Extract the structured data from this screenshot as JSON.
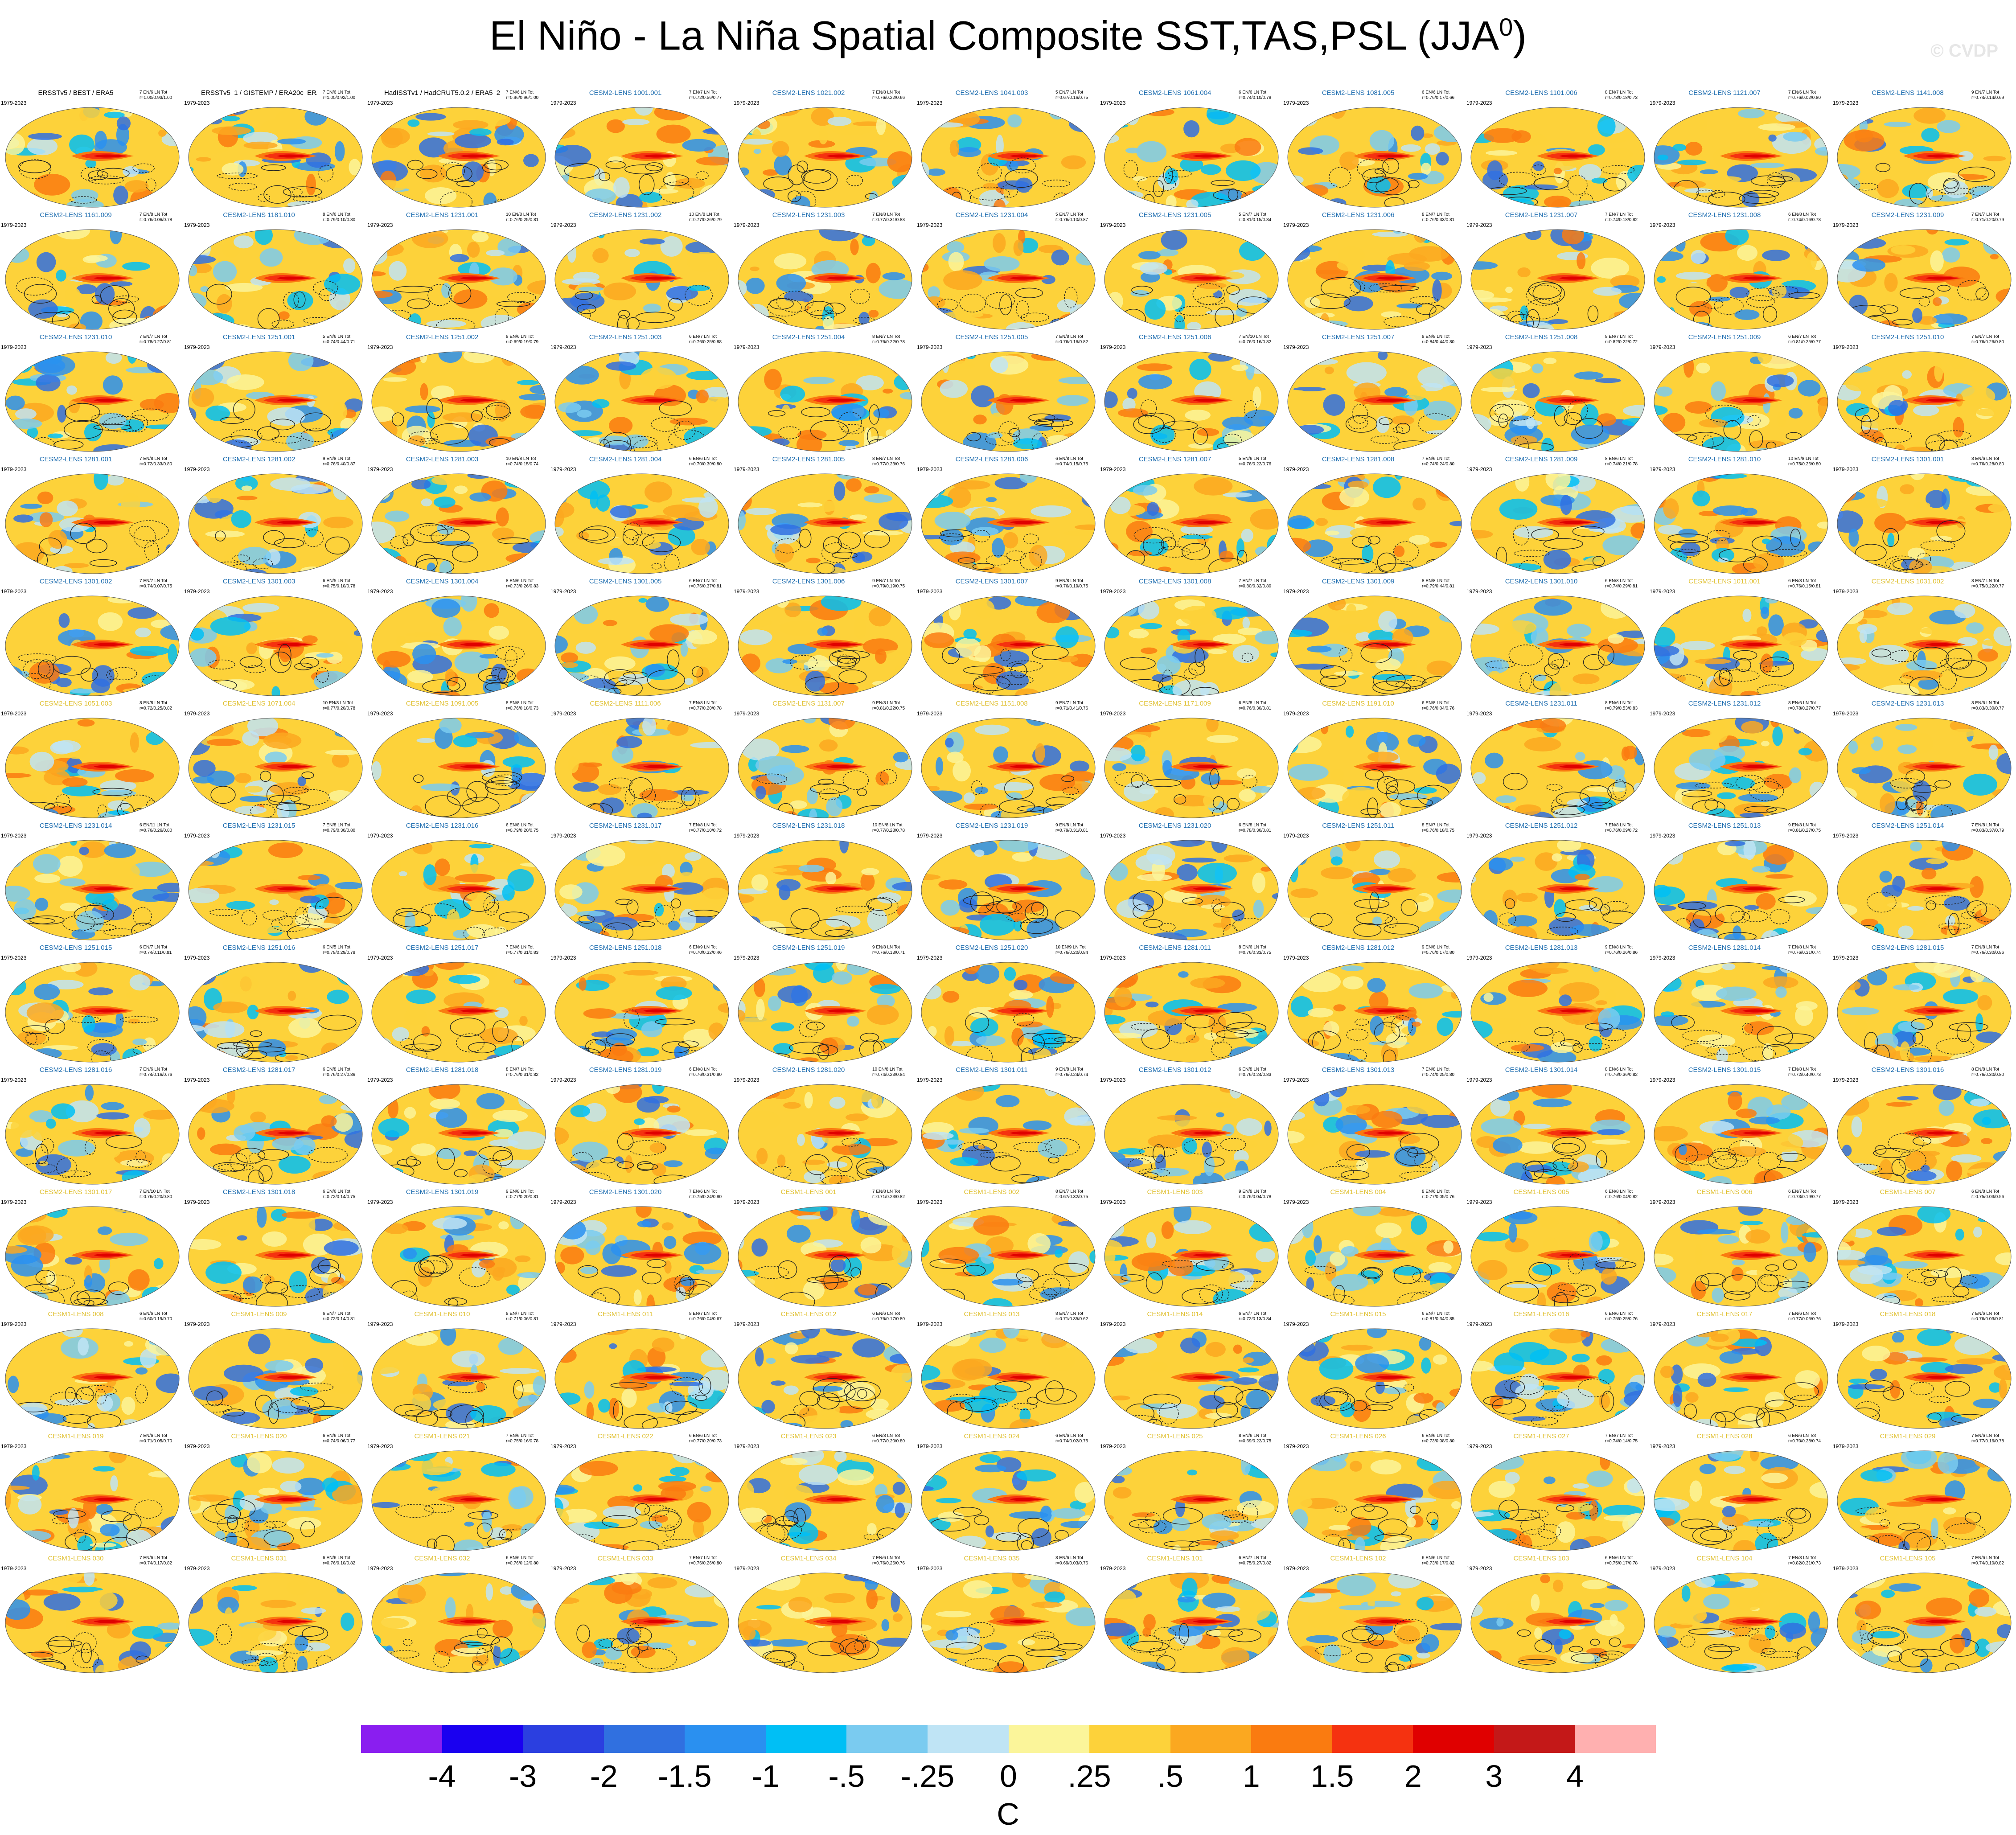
{
  "title": {
    "text": "El Niño - La Niña Spatial Composite SST,TAS,PSL (JJA",
    "sup": "0",
    "close": ")"
  },
  "watermark": "© CVDP",
  "period": "1979-2023",
  "colors": {
    "obs_title": "#000000",
    "cesm2_title": "#1f6eb0",
    "cesm1_title": "#e0c030"
  },
  "colorbar": {
    "colors": [
      "#8a1ef0",
      "#1a00f0",
      "#2b3fe0",
      "#3070e0",
      "#2a90f0",
      "#00bff5",
      "#7acbf0",
      "#bfe4f5",
      "#fbf59a",
      "#fdd23a",
      "#fba820",
      "#fa7b10",
      "#f53210",
      "#e00000",
      "#c41818",
      "#ffb0b0"
    ],
    "ticks": [
      "-4",
      "-3",
      "-2",
      "-1.5",
      "-1",
      "-.5",
      "-.25",
      "0",
      ".25",
      ".5",
      "1",
      "1.5",
      "2",
      "3",
      "4"
    ],
    "unit": "C"
  },
  "panels": [
    {
      "t": "ERSSTv5 / BEST / ERA5",
      "c": "obs",
      "s": "7 EN/6 LN Tot r=1.00/0.93/1.00"
    },
    {
      "t": "ERSSTv5_1 / GISTEMP / ERA20c_ERA5_comb",
      "c": "obs",
      "s": "7 EN/6 LN Tot r=1.00/0.92/1.00"
    },
    {
      "t": "HadISSTv1 / HadCRUT5.0.2 / ERA5_2",
      "c": "obs",
      "s": "7 EN/6 LN Tot r=0.96/0.96/1.00"
    },
    {
      "t": "CESM2-LENS 1001.001",
      "c": "c2",
      "s": "7 EN/7 LN Tot r=0.72/0.56/0.77"
    },
    {
      "t": "CESM2-LENS 1021.002",
      "c": "c2",
      "s": "7 EN/8 LN Tot r=0.76/0.22/0.66"
    },
    {
      "t": "CESM2-LENS 1041.003",
      "c": "c2",
      "s": "5 EN/7 LN Tot r=0.67/0.16/0.75"
    },
    {
      "t": "CESM2-LENS 1061.004",
      "c": "c2",
      "s": "6 EN/6 LN Tot r=0.74/0.10/0.78"
    },
    {
      "t": "CESM2-LENS 1081.005",
      "c": "c2",
      "s": "6 EN/6 LN Tot r=0.76/0.17/0.66"
    },
    {
      "t": "CESM2-LENS 1101.006",
      "c": "c2",
      "s": "8 EN/7 LN Tot r=0.78/0.18/0.73"
    },
    {
      "t": "CESM2-LENS 1121.007",
      "c": "c2",
      "s": "7 EN/6 LN Tot r=0.76/0.02/0.80"
    },
    {
      "t": "CESM2-LENS 1141.008",
      "c": "c2",
      "s": "9 EN/7 LN Tot r=0.74/0.14/0.69"
    },
    {
      "t": "CESM2-LENS 1161.009",
      "c": "c2",
      "s": "7 EN/8 LN Tot r=0.76/0.06/0.78"
    },
    {
      "t": "CESM2-LENS 1181.010",
      "c": "c2",
      "s": "8 EN/6 LN Tot r=0.79/0.10/0.80"
    },
    {
      "t": "CESM2-LENS 1231.001",
      "c": "c2",
      "s": "10 EN/8 LN Tot r=0.76/0.25/0.81"
    },
    {
      "t": "CESM2-LENS 1231.002",
      "c": "c2",
      "s": "10 EN/8 LN Tot r=0.77/0.26/0.79"
    },
    {
      "t": "CESM2-LENS 1231.003",
      "c": "c2",
      "s": "7 EN/8 LN Tot r=0.77/0.31/0.83"
    },
    {
      "t": "CESM2-LENS 1231.004",
      "c": "c2",
      "s": "5 EN/7 LN Tot r=0.76/0.10/0.87"
    },
    {
      "t": "CESM2-LENS 1231.005",
      "c": "c2",
      "s": "5 EN/7 LN Tot r=0.81/0.15/0.84"
    },
    {
      "t": "CESM2-LENS 1231.006",
      "c": "c2",
      "s": "8 EN/7 LN Tot r=0.76/0.33/0.81"
    },
    {
      "t": "CESM2-LENS 1231.007",
      "c": "c2",
      "s": "7 EN/7 LN Tot r=0.74/0.18/0.82"
    },
    {
      "t": "CESM2-LENS 1231.008",
      "c": "c2",
      "s": "6 EN/8 LN Tot r=0.74/0.16/0.78"
    },
    {
      "t": "CESM2-LENS 1231.009",
      "c": "c2",
      "s": "7 EN/7 LN Tot r=0.71/0.20/0.79"
    },
    {
      "t": "CESM2-LENS 1231.010",
      "c": "c2",
      "s": "7 EN/7 LN Tot r=0.78/0.27/0.81"
    },
    {
      "t": "CESM2-LENS 1251.001",
      "c": "c2",
      "s": "5 EN/6 LN Tot r=0.74/0.44/0.71"
    },
    {
      "t": "CESM2-LENS 1251.002",
      "c": "c2",
      "s": "8 EN/6 LN Tot r=0.69/0.19/0.79"
    },
    {
      "t": "CESM2-LENS 1251.003",
      "c": "c2",
      "s": "6 EN/7 LN Tot r=0.76/0.25/0.88"
    },
    {
      "t": "CESM2-LENS 1251.004",
      "c": "c2",
      "s": "8 EN/7 LN Tot r=0.76/0.22/0.78"
    },
    {
      "t": "CESM2-LENS 1251.005",
      "c": "c2",
      "s": "7 EN/8 LN Tot r=0.76/0.16/0.82"
    },
    {
      "t": "CESM2-LENS 1251.006",
      "c": "c2",
      "s": "7 EN/10 LN Tot r=0.76/0.16/0.82"
    },
    {
      "t": "CESM2-LENS 1251.007",
      "c": "c2",
      "s": "8 EN/8 LN Tot r=0.84/0.44/0.80"
    },
    {
      "t": "CESM2-LENS 1251.008",
      "c": "c2",
      "s": "8 EN/7 LN Tot r=0.82/0.22/0.72"
    },
    {
      "t": "CESM2-LENS 1251.009",
      "c": "c2",
      "s": "6 EN/7 LN Tot r=0.81/0.25/0.77"
    },
    {
      "t": "CESM2-LENS 1251.010",
      "c": "c2",
      "s": "7 EN/7 LN Tot r=0.76/0.26/0.80"
    },
    {
      "t": "CESM2-LENS 1281.001",
      "c": "c2",
      "s": "7 EN/8 LN Tot r=0.72/0.33/0.80"
    },
    {
      "t": "CESM2-LENS 1281.002",
      "c": "c2",
      "s": "9 EN/8 LN Tot r=0.76/0.40/0.87"
    },
    {
      "t": "CESM2-LENS 1281.003",
      "c": "c2",
      "s": "10 EN/8 LN Tot r=0.74/0.15/0.74"
    },
    {
      "t": "CESM2-LENS 1281.004",
      "c": "c2",
      "s": "6 EN/6 LN Tot r=0.70/0.30/0.80"
    },
    {
      "t": "CESM2-LENS 1281.005",
      "c": "c2",
      "s": "8 EN/7 LN Tot r=0.77/0.23/0.76"
    },
    {
      "t": "CESM2-LENS 1281.006",
      "c": "c2",
      "s": "6 EN/8 LN Tot r=0.74/0.15/0.75"
    },
    {
      "t": "CESM2-LENS 1281.007",
      "c": "c2",
      "s": "5 EN/6 LN Tot r=0.76/0.22/0.76"
    },
    {
      "t": "CESM2-LENS 1281.008",
      "c": "c2",
      "s": "7 EN/6 LN Tot r=0.74/0.24/0.80"
    },
    {
      "t": "CESM2-LENS 1281.009",
      "c": "c2",
      "s": "8 EN/6 LN Tot r=0.74/0.21/0.78"
    },
    {
      "t": "CESM2-LENS 1281.010",
      "c": "c2",
      "s": "10 EN/8 LN Tot r=0.75/0.26/0.80"
    },
    {
      "t": "CESM2-LENS 1301.001",
      "c": "c2",
      "s": "8 EN/6 LN Tot r=0.76/0.28/0.80"
    },
    {
      "t": "CESM2-LENS 1301.002",
      "c": "c2",
      "s": "7 EN/7 LN Tot r=0.74/0.07/0.75"
    },
    {
      "t": "CESM2-LENS 1301.003",
      "c": "c2",
      "s": "6 EN/5 LN Tot r=0.75/0.10/0.78"
    },
    {
      "t": "CESM2-LENS 1301.004",
      "c": "c2",
      "s": "8 EN/6 LN Tot r=0.73/0.26/0.83"
    },
    {
      "t": "CESM2-LENS 1301.005",
      "c": "c2",
      "s": "6 EN/7 LN Tot r=0.76/0.37/0.81"
    },
    {
      "t": "CESM2-LENS 1301.006",
      "c": "c2",
      "s": "9 EN/7 LN Tot r=0.79/0.19/0.75"
    },
    {
      "t": "CESM2-LENS 1301.007",
      "c": "c2",
      "s": "9 EN/8 LN Tot r=0.76/0.19/0.75"
    },
    {
      "t": "CESM2-LENS 1301.008",
      "c": "c2",
      "s": "7 EN/7 LN Tot r=0.80/0.32/0.80"
    },
    {
      "t": "CESM2-LENS 1301.009",
      "c": "c2",
      "s": "8 EN/8 LN Tot r=0.79/0.44/0.81"
    },
    {
      "t": "CESM2-LENS 1301.010",
      "c": "c2",
      "s": "6 EN/8 LN Tot r=0.74/0.29/0.81"
    },
    {
      "t": "CESM2-LENS 1011.001",
      "c": "c2y",
      "s": "6 EN/8 LN Tot r=0.76/0.15/0.81"
    },
    {
      "t": "CESM2-LENS 1031.002",
      "c": "c2y",
      "s": "8 EN/7 LN Tot r=0.75/0.22/0.77"
    },
    {
      "t": "CESM2-LENS 1051.003",
      "c": "c2y",
      "s": "8 EN/8 LN Tot r=0.72/0.25/0.82"
    },
    {
      "t": "CESM2-LENS 1071.004",
      "c": "c2y",
      "s": "10 EN/8 LN Tot r=0.77/0.20/0.78"
    },
    {
      "t": "CESM2-LENS 1091.005",
      "c": "c2y",
      "s": "8 EN/8 LN Tot r=0.76/0.18/0.73"
    },
    {
      "t": "CESM2-LENS 1111.006",
      "c": "c2y",
      "s": "7 EN/8 LN Tot r=0.77/0.20/0.78"
    },
    {
      "t": "CESM2-LENS 1131.007",
      "c": "c2y",
      "s": "9 EN/8 LN Tot r=0.81/0.22/0.75"
    },
    {
      "t": "CESM2-LENS 1151.008",
      "c": "c2y",
      "s": "9 EN/7 LN Tot r=0.71/0.41/0.76"
    },
    {
      "t": "CESM2-LENS 1171.009",
      "c": "c2y",
      "s": "6 EN/8 LN Tot r=0.76/0.30/0.81"
    },
    {
      "t": "CESM2-LENS 1191.010",
      "c": "c2y",
      "s": "6 EN/8 LN Tot r=0.76/0.04/0.76"
    },
    {
      "t": "CESM2-LENS 1231.011",
      "c": "c2",
      "s": "8 EN/6 LN Tot r=0.79/0.53/0.83"
    },
    {
      "t": "CESM2-LENS 1231.012",
      "c": "c2",
      "s": "8 EN/6 LN Tot r=0.78/0.27/0.77"
    },
    {
      "t": "CESM2-LENS 1231.013",
      "c": "c2",
      "s": "8 EN/6 LN Tot r=0.83/0.30/0.77"
    },
    {
      "t": "CESM2-LENS 1231.014",
      "c": "c2",
      "s": "6 EN/11 LN Tot r=0.76/0.26/0.80"
    },
    {
      "t": "CESM2-LENS 1231.015",
      "c": "c2",
      "s": "7 EN/8 LN Tot r=0.79/0.30/0.80"
    },
    {
      "t": "CESM2-LENS 1231.016",
      "c": "c2",
      "s": "6 EN/8 LN Tot r=0.79/0.20/0.75"
    },
    {
      "t": "CESM2-LENS 1231.017",
      "c": "c2",
      "s": "7 EN/8 LN Tot r=0.77/0.10/0.72"
    },
    {
      "t": "CESM2-LENS 1231.018",
      "c": "c2",
      "s": "10 EN/8 LN Tot r=0.77/0.28/0.78"
    },
    {
      "t": "CESM2-LENS 1231.019",
      "c": "c2",
      "s": "9 EN/8 LN Tot r=0.79/0.31/0.81"
    },
    {
      "t": "CESM2-LENS 1231.020",
      "c": "c2",
      "s": "6 EN/8 LN Tot r=0.78/0.30/0.81"
    },
    {
      "t": "CESM2-LENS 1251.011",
      "c": "c2",
      "s": "8 EN/7 LN Tot r=0.76/0.18/0.75"
    },
    {
      "t": "CESM2-LENS 1251.012",
      "c": "c2",
      "s": "7 EN/8 LN Tot r=0.76/0.09/0.72"
    },
    {
      "t": "CESM2-LENS 1251.013",
      "c": "c2",
      "s": "9 EN/8 LN Tot r=0.81/0.27/0.75"
    },
    {
      "t": "CESM2-LENS 1251.014",
      "c": "c2",
      "s": "7 EN/8 LN Tot r=0.83/0.37/0.79"
    },
    {
      "t": "CESM2-LENS 1251.015",
      "c": "c2",
      "s": "6 EN/7 LN Tot r=0.74/0.11/0.81"
    },
    {
      "t": "CESM2-LENS 1251.016",
      "c": "c2",
      "s": "6 EN/5 LN Tot r=0.78/0.29/0.78"
    },
    {
      "t": "CESM2-LENS 1251.017",
      "c": "c2",
      "s": "7 EN/6 LN Tot r=0.77/0.31/0.83"
    },
    {
      "t": "CESM2-LENS 1251.018",
      "c": "c2",
      "s": "6 EN/9 LN Tot r=0.70/0.32/0.46"
    },
    {
      "t": "CESM2-LENS 1251.019",
      "c": "c2",
      "s": "9 EN/8 LN Tot r=0.76/0.13/0.71"
    },
    {
      "t": "CESM2-LENS 1251.020",
      "c": "c2",
      "s": "10 EN/9 LN Tot r=0.76/0.20/0.84"
    },
    {
      "t": "CESM2-LENS 1281.011",
      "c": "c2",
      "s": "8 EN/6 LN Tot r=0.76/0.33/0.75"
    },
    {
      "t": "CESM2-LENS 1281.012",
      "c": "c2",
      "s": "9 EN/8 LN Tot r=0.76/0.17/0.80"
    },
    {
      "t": "CESM2-LENS 1281.013",
      "c": "c2",
      "s": "9 EN/8 LN Tot r=0.76/0.26/0.86"
    },
    {
      "t": "CESM2-LENS 1281.014",
      "c": "c2",
      "s": "7 EN/8 LN Tot r=0.76/0.31/0.74"
    },
    {
      "t": "CESM2-LENS 1281.015",
      "c": "c2",
      "s": "7 EN/8 LN Tot r=0.76/0.30/0.86"
    },
    {
      "t": "CESM2-LENS 1281.016",
      "c": "c2",
      "s": "7 EN/6 LN Tot r=0.74/0.16/0.76"
    },
    {
      "t": "CESM2-LENS 1281.017",
      "c": "c2",
      "s": "6 EN/8 LN Tot r=0.76/0.27/0.86"
    },
    {
      "t": "CESM2-LENS 1281.018",
      "c": "c2",
      "s": "8 EN/7 LN Tot r=0.76/0.31/0.82"
    },
    {
      "t": "CESM2-LENS 1281.019",
      "c": "c2",
      "s": "6 EN/8 LN Tot r=0.76/0.31/0.80"
    },
    {
      "t": "CESM2-LENS 1281.020",
      "c": "c2",
      "s": "10 EN/8 LN Tot r=0.74/0.23/0.84"
    },
    {
      "t": "CESM2-LENS 1301.011",
      "c": "c2",
      "s": "9 EN/8 LN Tot r=0.76/0.24/0.74"
    },
    {
      "t": "CESM2-LENS 1301.012",
      "c": "c2",
      "s": "6 EN/8 LN Tot r=0.76/0.24/0.83"
    },
    {
      "t": "CESM2-LENS 1301.013",
      "c": "c2",
      "s": "7 EN/8 LN Tot r=0.74/0.25/0.80"
    },
    {
      "t": "CESM2-LENS 1301.014",
      "c": "c2",
      "s": "8 EN/6 LN Tot r=0.76/0.36/0.82"
    },
    {
      "t": "CESM2-LENS 1301.015",
      "c": "c2",
      "s": "7 EN/8 LN Tot r=0.72/0.40/0.73"
    },
    {
      "t": "CESM2-LENS 1301.016",
      "c": "c2",
      "s": "8 EN/8 LN Tot r=0.76/0.30/0.80"
    },
    {
      "t": "CESM2-LENS 1301.017",
      "c": "c2y",
      "s": "7 EN/10 LN Tot r=0.76/0.20/0.80"
    },
    {
      "t": "CESM2-LENS 1301.018",
      "c": "c2",
      "s": "6 EN/6 LN Tot r=0.72/0.14/0.75"
    },
    {
      "t": "CESM2-LENS 1301.019",
      "c": "c2",
      "s": "9 EN/8 LN Tot r=0.77/0.20/0.81"
    },
    {
      "t": "CESM2-LENS 1301.020",
      "c": "c2",
      "s": "7 EN/6 LN Tot r=0.75/0.24/0.80"
    },
    {
      "t": "CESM1-LENS 001",
      "c": "c1",
      "s": "7 EN/8 LN Tot r=0.71/0.23/0.82"
    },
    {
      "t": "CESM1-LENS 002",
      "c": "c1",
      "s": "8 EN/7 LN Tot r=0.67/0.32/0.75"
    },
    {
      "t": "CESM1-LENS 003",
      "c": "c1",
      "s": "9 EN/8 LN Tot r=0.76/0.04/0.78"
    },
    {
      "t": "CESM1-LENS 004",
      "c": "c1",
      "s": "8 EN/6 LN Tot r=0.77/0.05/0.76"
    },
    {
      "t": "CESM1-LENS 005",
      "c": "c1",
      "s": "6 EN/8 LN Tot r=0.76/0.04/0.82"
    },
    {
      "t": "CESM1-LENS 006",
      "c": "c1",
      "s": "6 EN/7 LN Tot r=0.73/0.19/0.77"
    },
    {
      "t": "CESM1-LENS 007",
      "c": "c1",
      "s": "6 EN/8 LN Tot r=0.75/0.03/0.56"
    },
    {
      "t": "CESM1-LENS 008",
      "c": "c1",
      "s": "6 EN/6 LN Tot r=0.60/0.19/0.70"
    },
    {
      "t": "CESM1-LENS 009",
      "c": "c1",
      "s": "6 EN/7 LN Tot r=0.72/0.14/0.81"
    },
    {
      "t": "CESM1-LENS 010",
      "c": "c1",
      "s": "8 EN/7 LN Tot r=0.71/0.06/0.81"
    },
    {
      "t": "CESM1-LENS 011",
      "c": "c1",
      "s": "8 EN/7 LN Tot r=0.76/0.04/0.67"
    },
    {
      "t": "CESM1-LENS 012",
      "c": "c1",
      "s": "6 EN/6 LN Tot r=0.76/0.17/0.80"
    },
    {
      "t": "CESM1-LENS 013",
      "c": "c1",
      "s": "8 EN/7 LN Tot r=0.71/0.35/0.62"
    },
    {
      "t": "CESM1-LENS 014",
      "c": "c1",
      "s": "6 EN/7 LN Tot r=0.72/0.13/0.84"
    },
    {
      "t": "CESM1-LENS 015",
      "c": "c1",
      "s": "6 EN/7 LN Tot r=0.81/0.34/0.85"
    },
    {
      "t": "CESM1-LENS 016",
      "c": "c1",
      "s": "6 EN/6 LN Tot r=0.75/0.25/0.76"
    },
    {
      "t": "CESM1-LENS 017",
      "c": "c1",
      "s": "7 EN/6 LN Tot r=0.77/0.06/0.76"
    },
    {
      "t": "CESM1-LENS 018",
      "c": "c1",
      "s": "7 EN/6 LN Tot r=0.76/0.03/0.81"
    },
    {
      "t": "CESM1-LENS 019",
      "c": "c1",
      "s": "7 EN/6 LN Tot r=0.71/0.05/0.70"
    },
    {
      "t": "CESM1-LENS 020",
      "c": "c1",
      "s": "6 EN/6 LN Tot r=0.74/0.06/0.77"
    },
    {
      "t": "CESM1-LENS 021",
      "c": "c1",
      "s": "7 EN/6 LN Tot r=0.75/0.16/0.78"
    },
    {
      "t": "CESM1-LENS 022",
      "c": "c1",
      "s": "6 EN/6 LN Tot r=0.77/0.20/0.73"
    },
    {
      "t": "CESM1-LENS 023",
      "c": "c1",
      "s": "6 EN/8 LN Tot r=0.77/0.20/0.80"
    },
    {
      "t": "CESM1-LENS 024",
      "c": "c1",
      "s": "6 EN/6 LN Tot r=0.74/0.02/0.75"
    },
    {
      "t": "CESM1-LENS 025",
      "c": "c1",
      "s": "8 EN/6 LN Tot r=0.69/0.22/0.75"
    },
    {
      "t": "CESM1-LENS 026",
      "c": "c1",
      "s": "6 EN/6 LN Tot r=0.73/0.08/0.80"
    },
    {
      "t": "CESM1-LENS 027",
      "c": "c1",
      "s": "7 EN/7 LN Tot r=0.74/0.14/0.75"
    },
    {
      "t": "CESM1-LENS 028",
      "c": "c1",
      "s": "6 EN/6 LN Tot r=0.70/0.28/0.74"
    },
    {
      "t": "CESM1-LENS 029",
      "c": "c1",
      "s": "7 EN/6 LN Tot r=0.77/0.16/0.78"
    },
    {
      "t": "CESM1-LENS 030",
      "c": "c1",
      "s": "7 EN/6 LN Tot r=0.74/0.17/0.82"
    },
    {
      "t": "CESM1-LENS 031",
      "c": "c1",
      "s": "6 EN/6 LN Tot r=0.76/0.10/0.82"
    },
    {
      "t": "CESM1-LENS 032",
      "c": "c1",
      "s": "6 EN/6 LN Tot r=0.76/0.12/0.80"
    },
    {
      "t": "CESM1-LENS 033",
      "c": "c1",
      "s": "7 EN/7 LN Tot r=0.76/0.26/0.80"
    },
    {
      "t": "CESM1-LENS 034",
      "c": "c1",
      "s": "7 EN/6 LN Tot r=0.76/0.26/0.76"
    },
    {
      "t": "CESM1-LENS 035",
      "c": "c1",
      "s": "8 EN/6 LN Tot r=0.69/0.03/0.76"
    },
    {
      "t": "CESM1-LENS 101",
      "c": "c1",
      "s": "6 EN/7 LN Tot r=0.75/0.27/0.82"
    },
    {
      "t": "CESM1-LENS 102",
      "c": "c1",
      "s": "6 EN/6 LN Tot r=0.73/0.17/0.82"
    },
    {
      "t": "CESM1-LENS 103",
      "c": "c1",
      "s": "6 EN/6 LN Tot r=0.75/0.17/0.78"
    },
    {
      "t": "CESM1-LENS 104",
      "c": "c1",
      "s": "7 EN/8 LN Tot r=0.82/0.31/0.73"
    },
    {
      "t": "CESM1-LENS 105",
      "c": "c1",
      "s": "7 EN/6 LN Tot r=0.74/0.10/0.82"
    }
  ]
}
